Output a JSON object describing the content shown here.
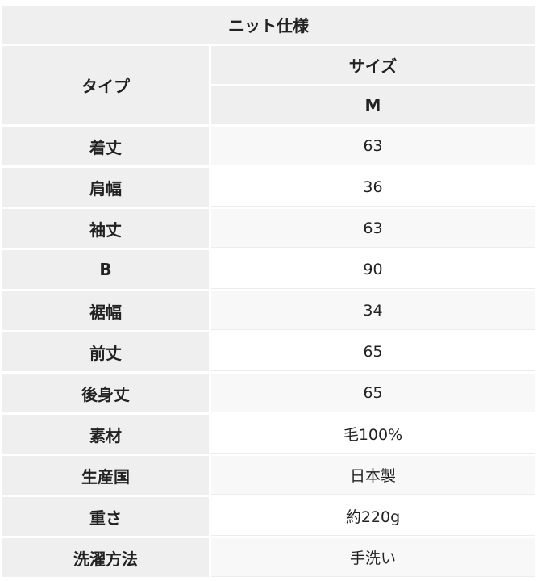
{
  "title": "ニット仕様",
  "type_header": "タイプ",
  "size_header": "サイズ",
  "size": "M",
  "rows": [
    {
      "label": "着丈",
      "value": "63"
    },
    {
      "label": "肩幅",
      "value": "36"
    },
    {
      "label": "袖丈",
      "value": "63"
    },
    {
      "label": "B",
      "value": "90"
    },
    {
      "label": "裾幅",
      "value": "34"
    },
    {
      "label": "前丈",
      "value": "65"
    },
    {
      "label": "後身丈",
      "value": "65"
    },
    {
      "label": "素材",
      "value": "毛100%"
    },
    {
      "label": "生産国",
      "value": "日本製"
    },
    {
      "label": "重さ",
      "value": "約220g"
    },
    {
      "label": "洗濯方法",
      "value": "手洗い"
    }
  ]
}
